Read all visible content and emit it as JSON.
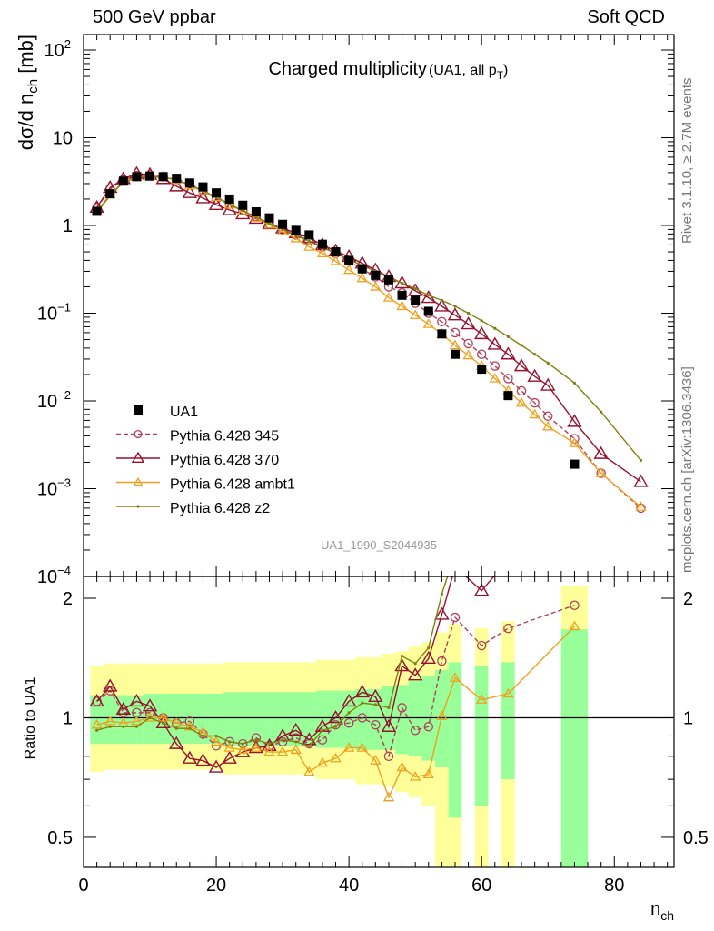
{
  "header": {
    "left": "500 GeV ppbar",
    "right": "Soft QCD",
    "side_top": "Rivet 3.1.10, ≥ 2.7M events",
    "side_bottom": "mcplots.cern.ch [arXiv:1306.3436]",
    "watermark": "UA1_1990_S2044935"
  },
  "chart_data": [
    {
      "type": "scatter",
      "title": "Charged multiplicity",
      "title_suffix": "(UA1, all p",
      "title_suffix_sub": "T",
      "title_suffix_close": ")",
      "xlabel": "n",
      "xlabel_sub": "ch",
      "ylabel": "dσ/d n",
      "ylabel_sub": "ch",
      "ylabel_unit": " [mb]",
      "xlim": [
        0,
        89
      ],
      "ylim": [
        0.0001,
        150
      ],
      "yscale": "log",
      "xticks": [
        "0",
        "20",
        "40",
        "60",
        "80"
      ],
      "yticks": [
        {
          "v": 100,
          "base": "10",
          "exp": "2"
        },
        {
          "v": 10,
          "base": "10",
          "exp": ""
        },
        {
          "v": 1,
          "base": "1",
          "exp": ""
        },
        {
          "v": 0.1,
          "base": "10",
          "exp": "−1"
        },
        {
          "v": 0.01,
          "base": "10",
          "exp": "−2"
        },
        {
          "v": 0.001,
          "base": "10",
          "exp": "−3"
        },
        {
          "v": 0.0001,
          "base": "10",
          "exp": "−4"
        }
      ],
      "legend_position": "bottom-left",
      "series": [
        {
          "name": "UA1",
          "style": "data",
          "color": "#000000",
          "x": [
            2,
            4,
            6,
            8,
            10,
            12,
            14,
            16,
            18,
            20,
            22,
            24,
            26,
            28,
            30,
            32,
            34,
            36,
            38,
            40,
            42,
            44,
            46,
            48,
            50,
            52,
            54,
            56,
            60,
            64,
            74
          ],
          "y": [
            1.45,
            2.3,
            3.2,
            3.6,
            3.65,
            3.6,
            3.45,
            3.05,
            2.75,
            2.35,
            2.0,
            1.7,
            1.43,
            1.22,
            1.03,
            0.88,
            0.78,
            0.61,
            0.5,
            0.4,
            0.32,
            0.27,
            0.24,
            0.16,
            0.14,
            0.105,
            0.058,
            0.034,
            0.023,
            0.0115,
            0.0019
          ]
        },
        {
          "name": "Pythia 6.428 345",
          "style": "circle-dashed",
          "color": "#b0405a",
          "x": [
            2,
            4,
            6,
            8,
            10,
            12,
            14,
            16,
            18,
            20,
            22,
            24,
            26,
            28,
            30,
            32,
            34,
            36,
            38,
            40,
            42,
            44,
            46,
            48,
            50,
            52,
            54,
            56,
            58,
            60,
            62,
            64,
            66,
            68,
            70,
            74,
            78,
            84
          ],
          "y": [
            1.6,
            2.6,
            3.3,
            3.7,
            3.75,
            3.6,
            3.35,
            3.0,
            2.5,
            2.0,
            1.75,
            1.47,
            1.27,
            1.04,
            0.9,
            0.78,
            0.67,
            0.57,
            0.48,
            0.39,
            0.32,
            0.26,
            0.2,
            0.17,
            0.13,
            0.1,
            0.08,
            0.06,
            0.045,
            0.034,
            0.025,
            0.018,
            0.013,
            0.0095,
            0.0067,
            0.0037,
            0.0015,
            0.0006
          ]
        },
        {
          "name": "Pythia 6.428 370",
          "style": "triangle",
          "color": "#98102d",
          "x": [
            2,
            4,
            6,
            8,
            10,
            12,
            14,
            16,
            18,
            20,
            22,
            24,
            26,
            28,
            30,
            32,
            34,
            36,
            38,
            40,
            42,
            44,
            46,
            48,
            50,
            52,
            54,
            56,
            58,
            60,
            62,
            64,
            66,
            68,
            70,
            74,
            78,
            84
          ],
          "y": [
            1.6,
            2.7,
            3.4,
            3.9,
            3.8,
            3.4,
            2.8,
            2.35,
            2.05,
            1.72,
            1.5,
            1.35,
            1.2,
            1.04,
            0.93,
            0.82,
            0.72,
            0.6,
            0.51,
            0.44,
            0.37,
            0.31,
            0.26,
            0.22,
            0.18,
            0.15,
            0.12,
            0.095,
            0.075,
            0.058,
            0.044,
            0.034,
            0.025,
            0.019,
            0.015,
            0.0058,
            0.0025,
            0.0012
          ]
        },
        {
          "name": "Pythia 6.428 ambt1",
          "style": "triangle-light",
          "color": "#f0a020",
          "x": [
            2,
            4,
            6,
            8,
            10,
            12,
            14,
            16,
            18,
            20,
            22,
            24,
            26,
            28,
            30,
            32,
            34,
            36,
            38,
            40,
            42,
            44,
            46,
            48,
            50,
            52,
            54,
            56,
            58,
            60,
            62,
            64,
            66,
            68,
            70,
            74,
            78,
            84
          ],
          "y": [
            1.45,
            2.25,
            3.15,
            3.55,
            3.65,
            3.6,
            3.3,
            2.85,
            2.45,
            2.1,
            1.72,
            1.45,
            1.22,
            1.02,
            0.85,
            0.71,
            0.57,
            0.48,
            0.39,
            0.31,
            0.25,
            0.2,
            0.15,
            0.12,
            0.095,
            0.075,
            0.058,
            0.043,
            0.033,
            0.025,
            0.018,
            0.013,
            0.0095,
            0.007,
            0.0051,
            0.0033,
            0.0015,
            0.00062
          ]
        },
        {
          "name": "Pythia 6.428 z2",
          "style": "dot",
          "color": "#808010",
          "x": [
            2,
            4,
            6,
            8,
            10,
            12,
            14,
            16,
            18,
            20,
            22,
            24,
            26,
            28,
            30,
            32,
            34,
            36,
            38,
            40,
            42,
            44,
            46,
            48,
            50,
            52,
            54,
            56,
            58,
            60,
            62,
            64,
            66,
            68,
            70,
            74,
            78,
            84
          ],
          "y": [
            1.4,
            2.2,
            3.1,
            3.5,
            3.6,
            3.55,
            3.3,
            2.9,
            2.5,
            2.1,
            1.75,
            1.47,
            1.25,
            1.05,
            0.9,
            0.77,
            0.66,
            0.56,
            0.48,
            0.41,
            0.35,
            0.3,
            0.255,
            0.22,
            0.19,
            0.16,
            0.14,
            0.12,
            0.1,
            0.082,
            0.067,
            0.054,
            0.043,
            0.034,
            0.027,
            0.016,
            0.0075,
            0.0021
          ]
        }
      ]
    },
    {
      "type": "line",
      "ylabel": "Ratio to UA1",
      "ylim": [
        0.42,
        2.27
      ],
      "xlim": [
        0,
        89
      ],
      "yticks": [
        "0.5",
        "1",
        "2"
      ],
      "reference": 1.0,
      "bands": [
        {
          "x0": 1,
          "x1": 3,
          "inner": [
            0.86,
            1.14
          ],
          "outer": [
            0.73,
            1.35
          ]
        },
        {
          "x0": 3,
          "x1": 9,
          "inner": [
            0.86,
            1.14
          ],
          "outer": [
            0.74,
            1.37
          ]
        },
        {
          "x0": 9,
          "x1": 21,
          "inner": [
            0.86,
            1.15
          ],
          "outer": [
            0.74,
            1.37
          ]
        },
        {
          "x0": 21,
          "x1": 35,
          "inner": [
            0.85,
            1.16
          ],
          "outer": [
            0.72,
            1.38
          ]
        },
        {
          "x0": 35,
          "x1": 41,
          "inner": [
            0.84,
            1.17
          ],
          "outer": [
            0.7,
            1.4
          ]
        },
        {
          "x0": 41,
          "x1": 45,
          "inner": [
            0.83,
            1.18
          ],
          "outer": [
            0.68,
            1.42
          ]
        },
        {
          "x0": 45,
          "x1": 47,
          "inner": [
            0.83,
            1.2
          ],
          "outer": [
            0.67,
            1.45
          ]
        },
        {
          "x0": 47,
          "x1": 49,
          "inner": [
            0.81,
            1.21
          ],
          "outer": [
            0.65,
            1.47
          ]
        },
        {
          "x0": 49,
          "x1": 51,
          "inner": [
            0.8,
            1.24
          ],
          "outer": [
            0.63,
            1.51
          ]
        },
        {
          "x0": 51,
          "x1": 53,
          "inner": [
            0.78,
            1.27
          ],
          "outer": [
            0.6,
            1.55
          ]
        },
        {
          "x0": 53,
          "x1": 55,
          "inner": [
            0.75,
            1.32
          ],
          "outer": [
            0.42,
            1.64
          ]
        },
        {
          "x0": 55,
          "x1": 57,
          "inner": [
            0.56,
            1.38
          ],
          "outer": [
            0.42,
            1.72
          ]
        },
        {
          "x0": 59,
          "x1": 61,
          "inner": [
            0.6,
            1.35
          ],
          "outer": [
            0.42,
            1.68
          ]
        },
        {
          "x0": 63,
          "x1": 65,
          "inner": [
            0.7,
            1.38
          ],
          "outer": [
            0.42,
            1.75
          ]
        },
        {
          "x0": 72,
          "x1": 76,
          "inner": [
            0.42,
            1.67
          ],
          "outer": [
            0.42,
            2.15
          ]
        }
      ],
      "series": [
        {
          "name": "Pythia 6.428 345",
          "style": "circle-dashed",
          "color": "#b0405a",
          "x": [
            2,
            4,
            6,
            8,
            10,
            12,
            14,
            16,
            18,
            20,
            22,
            24,
            26,
            28,
            30,
            32,
            34,
            36,
            38,
            40,
            42,
            44,
            46,
            48,
            50,
            52,
            54,
            56,
            60,
            64,
            74
          ],
          "y": [
            1.1,
            1.17,
            1.03,
            1.03,
            1.03,
            1.0,
            0.97,
            0.98,
            0.91,
            0.85,
            0.87,
            0.86,
            0.89,
            0.85,
            0.87,
            0.89,
            0.86,
            0.88,
            0.96,
            0.97,
            1.0,
            0.96,
            0.8,
            1.06,
            0.93,
            0.95,
            1.39,
            1.79,
            1.52,
            1.68,
            1.92
          ]
        },
        {
          "name": "Pythia 6.428 370",
          "style": "triangle",
          "color": "#98102d",
          "x": [
            2,
            4,
            6,
            8,
            10,
            12,
            14,
            16,
            18,
            20,
            22,
            24,
            26,
            28,
            30,
            32,
            34,
            36,
            38,
            40,
            42,
            44,
            46,
            48,
            50,
            52,
            54,
            56,
            60,
            64
          ],
          "y": [
            1.1,
            1.2,
            1.05,
            1.1,
            1.07,
            0.97,
            0.86,
            0.79,
            0.78,
            0.75,
            0.79,
            0.82,
            0.84,
            0.85,
            0.9,
            0.93,
            0.88,
            0.95,
            1.0,
            1.1,
            1.16,
            1.13,
            0.95,
            1.35,
            1.28,
            1.41,
            1.82,
            2.4,
            2.09,
            2.5
          ]
        },
        {
          "name": "Pythia 6.428 ambt1",
          "style": "triangle-light",
          "color": "#f0a020",
          "x": [
            2,
            4,
            6,
            8,
            10,
            12,
            14,
            16,
            18,
            20,
            22,
            24,
            26,
            28,
            30,
            32,
            34,
            36,
            38,
            40,
            42,
            44,
            46,
            48,
            50,
            52,
            54,
            56,
            60,
            64,
            74
          ],
          "y": [
            0.96,
            0.98,
            0.97,
            0.98,
            1.0,
            1.0,
            0.97,
            0.95,
            0.92,
            0.87,
            0.84,
            0.83,
            0.84,
            0.82,
            0.82,
            0.83,
            0.73,
            0.77,
            0.79,
            0.84,
            0.84,
            0.78,
            0.63,
            0.75,
            0.71,
            0.72,
            1.01,
            1.26,
            1.11,
            1.15,
            1.7
          ]
        },
        {
          "name": "Pythia 6.428 z2",
          "style": "dot",
          "color": "#808010",
          "x": [
            2,
            4,
            6,
            8,
            10,
            12,
            14,
            16,
            18,
            20,
            22,
            24,
            26,
            28,
            30,
            32,
            34,
            36,
            38,
            40,
            42,
            44,
            46,
            48,
            50,
            52,
            54,
            56
          ],
          "y": [
            0.93,
            0.95,
            0.95,
            0.95,
            1.0,
            0.97,
            0.94,
            0.94,
            0.9,
            0.9,
            0.87,
            0.86,
            0.88,
            0.86,
            0.88,
            0.87,
            0.85,
            0.93,
            0.95,
            1.03,
            1.09,
            1.08,
            1.06,
            1.43,
            1.37,
            1.5,
            2.05,
            2.6
          ]
        }
      ]
    }
  ]
}
